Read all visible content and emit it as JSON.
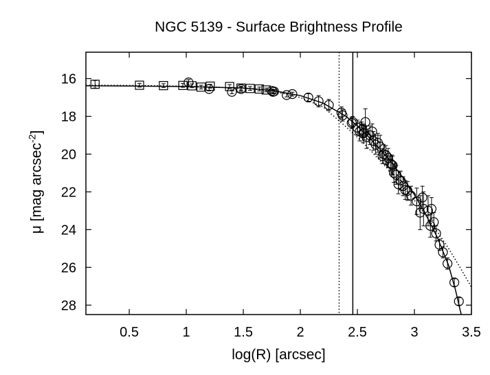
{
  "chart_data": {
    "type": "scatter",
    "title": "NGC 5139 - Surface Brightness Profile",
    "xlabel": "log(R) [arcsec]",
    "ylabel_main": "μ [mag arcsec",
    "ylabel_sup": "-2",
    "ylabel_close": "]",
    "xlim": [
      0.12,
      3.5
    ],
    "ylim": [
      28.5,
      14.6
    ],
    "y_inverted": true,
    "x_ticks": [
      0.5,
      1,
      1.5,
      2,
      2.5,
      3,
      3.5
    ],
    "x_tick_labels": [
      "0.5",
      "1",
      "1.5",
      "2",
      "2.5",
      "3",
      "3.5"
    ],
    "y_ticks": [
      16,
      18,
      20,
      22,
      24,
      26,
      28
    ],
    "y_tick_labels": [
      "16",
      "18",
      "20",
      "22",
      "24",
      "26",
      "28"
    ],
    "grid": false,
    "legend": "none",
    "vertical_lines": [
      {
        "x": 2.46,
        "style": "solid"
      },
      {
        "x": 2.34,
        "style": "dotted"
      }
    ],
    "series": [
      {
        "marker": "square",
        "points": [
          [
            0.2,
            16.3
          ],
          [
            0.59,
            16.35
          ],
          [
            0.8,
            16.37
          ],
          [
            0.97,
            16.36
          ],
          [
            1.05,
            16.38
          ],
          [
            1.13,
            16.45
          ],
          [
            1.21,
            16.4
          ],
          [
            1.38,
            16.42
          ],
          [
            1.48,
            16.5
          ],
          [
            1.56,
            16.52
          ],
          [
            1.64,
            16.55
          ],
          [
            1.7,
            16.6
          ]
        ],
        "errors": [
          0.2,
          0.1,
          0.1,
          0.1,
          0.1,
          0.1,
          0.1,
          0.1,
          0.1,
          0.1,
          0.1,
          0.1
        ]
      },
      {
        "marker": "circle",
        "points": [
          [
            1.02,
            16.2
          ],
          [
            1.2,
            16.55
          ],
          [
            1.4,
            16.7
          ],
          [
            1.48,
            16.55
          ],
          [
            1.75,
            16.65
          ],
          [
            1.76,
            16.7
          ],
          [
            1.77,
            16.68
          ],
          [
            1.88,
            16.87
          ],
          [
            1.93,
            16.82
          ],
          [
            2.07,
            17.0
          ],
          [
            2.16,
            17.2
          ],
          [
            2.25,
            17.4
          ],
          [
            2.36,
            17.8
          ],
          [
            2.37,
            17.95
          ],
          [
            2.45,
            18.35
          ],
          [
            2.46,
            18.3
          ],
          [
            2.5,
            18.6
          ],
          [
            2.52,
            18.8
          ],
          [
            2.54,
            18.7
          ],
          [
            2.55,
            18.9
          ],
          [
            2.56,
            18.85
          ],
          [
            2.57,
            18.3
          ],
          [
            2.58,
            19.1
          ],
          [
            2.61,
            19.0
          ],
          [
            2.63,
            18.8
          ],
          [
            2.64,
            19.3
          ],
          [
            2.66,
            19.5
          ],
          [
            2.68,
            19.4
          ],
          [
            2.7,
            19.6
          ],
          [
            2.72,
            20.1
          ],
          [
            2.73,
            20.0
          ],
          [
            2.75,
            20.05
          ],
          [
            2.77,
            20.2
          ],
          [
            2.79,
            20.5
          ],
          [
            2.8,
            20.55
          ],
          [
            2.81,
            20.6
          ],
          [
            2.82,
            21.0
          ],
          [
            2.84,
            21.1
          ],
          [
            2.86,
            21.6
          ],
          [
            2.88,
            21.4
          ],
          [
            2.9,
            21.7
          ],
          [
            2.92,
            21.9
          ],
          [
            2.94,
            21.95
          ],
          [
            2.97,
            22.2
          ],
          [
            3.02,
            22.5
          ],
          [
            3.05,
            23.1
          ],
          [
            3.07,
            22.3
          ],
          [
            3.08,
            22.9
          ],
          [
            3.12,
            23.0
          ],
          [
            3.14,
            23.8
          ],
          [
            3.15,
            22.9
          ],
          [
            3.17,
            23.6
          ],
          [
            3.19,
            24.2
          ],
          [
            3.22,
            24.8
          ],
          [
            3.25,
            25.2
          ],
          [
            3.29,
            25.8
          ],
          [
            3.35,
            26.8
          ],
          [
            3.39,
            27.8
          ]
        ],
        "errors": [
          0.15,
          0.1,
          0.1,
          0.1,
          0.1,
          0.1,
          0.1,
          0.1,
          0.1,
          0.2,
          0.3,
          0.3,
          0.3,
          0.3,
          0.3,
          0.3,
          0.4,
          0.5,
          0.4,
          0.5,
          0.4,
          0.7,
          0.6,
          0.5,
          0.4,
          0.5,
          0.5,
          0.5,
          0.6,
          0.4,
          0.5,
          0.5,
          0.5,
          0.4,
          0.5,
          0.5,
          0.5,
          0.5,
          0.5,
          0.5,
          0.5,
          0.5,
          0.5,
          0.5,
          0.7,
          0.9,
          0.6,
          0.9,
          0.8,
          0.6,
          0.6,
          0.5,
          0.4,
          0.3,
          0.3,
          0.3,
          0.2,
          0.2
        ]
      }
    ],
    "model_curves": [
      {
        "style": "solid",
        "points": [
          [
            0.12,
            16.38
          ],
          [
            0.5,
            16.39
          ],
          [
            1.0,
            16.42
          ],
          [
            1.5,
            16.5
          ],
          [
            1.75,
            16.62
          ],
          [
            2.0,
            16.9
          ],
          [
            2.2,
            17.3
          ],
          [
            2.4,
            18.0
          ],
          [
            2.5,
            18.5
          ],
          [
            2.6,
            19.1
          ],
          [
            2.7,
            19.75
          ],
          [
            2.8,
            20.45
          ],
          [
            2.9,
            21.25
          ],
          [
            3.0,
            22.15
          ],
          [
            3.1,
            23.2
          ],
          [
            3.2,
            24.4
          ],
          [
            3.3,
            25.9
          ],
          [
            3.36,
            27.2
          ],
          [
            3.41,
            28.5
          ]
        ]
      },
      {
        "style": "dotted",
        "points": [
          [
            0.12,
            16.35
          ],
          [
            0.5,
            16.36
          ],
          [
            1.0,
            16.4
          ],
          [
            1.5,
            16.5
          ],
          [
            1.75,
            16.65
          ],
          [
            2.0,
            17.0
          ],
          [
            2.2,
            17.5
          ],
          [
            2.4,
            18.55
          ],
          [
            2.5,
            19.1
          ],
          [
            2.6,
            19.7
          ],
          [
            2.7,
            20.35
          ],
          [
            2.8,
            21.0
          ],
          [
            2.9,
            21.7
          ],
          [
            3.0,
            22.45
          ],
          [
            3.1,
            23.25
          ],
          [
            3.2,
            24.1
          ],
          [
            3.3,
            25.0
          ],
          [
            3.4,
            26.0
          ],
          [
            3.5,
            27.05
          ]
        ]
      }
    ]
  }
}
